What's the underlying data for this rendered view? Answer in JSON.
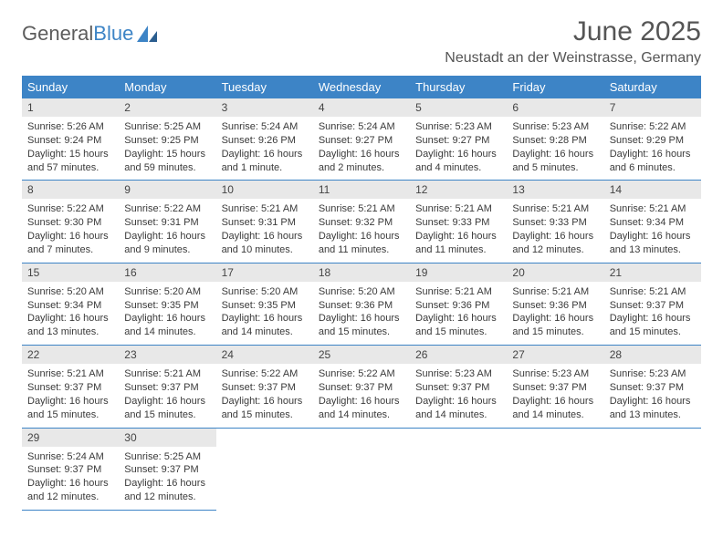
{
  "logo": {
    "part1": "General",
    "part2": "Blue"
  },
  "title": "June 2025",
  "location": "Neustadt an der Weinstrasse, Germany",
  "colors": {
    "header_bg": "#3d84c6",
    "header_fg": "#ffffff",
    "daynum_bg": "#e8e8e8",
    "row_divider": "#3d84c6",
    "text": "#3a3a3a",
    "title": "#555"
  },
  "weekdays": [
    "Sunday",
    "Monday",
    "Tuesday",
    "Wednesday",
    "Thursday",
    "Friday",
    "Saturday"
  ],
  "font": {
    "body_size": 11,
    "header_size": 13,
    "title_size": 30,
    "location_size": 16
  },
  "days": [
    {
      "n": "1",
      "sr": "Sunrise: 5:26 AM",
      "ss": "Sunset: 9:24 PM",
      "dl1": "Daylight: 15 hours",
      "dl2": "and 57 minutes."
    },
    {
      "n": "2",
      "sr": "Sunrise: 5:25 AM",
      "ss": "Sunset: 9:25 PM",
      "dl1": "Daylight: 15 hours",
      "dl2": "and 59 minutes."
    },
    {
      "n": "3",
      "sr": "Sunrise: 5:24 AM",
      "ss": "Sunset: 9:26 PM",
      "dl1": "Daylight: 16 hours",
      "dl2": "and 1 minute."
    },
    {
      "n": "4",
      "sr": "Sunrise: 5:24 AM",
      "ss": "Sunset: 9:27 PM",
      "dl1": "Daylight: 16 hours",
      "dl2": "and 2 minutes."
    },
    {
      "n": "5",
      "sr": "Sunrise: 5:23 AM",
      "ss": "Sunset: 9:27 PM",
      "dl1": "Daylight: 16 hours",
      "dl2": "and 4 minutes."
    },
    {
      "n": "6",
      "sr": "Sunrise: 5:23 AM",
      "ss": "Sunset: 9:28 PM",
      "dl1": "Daylight: 16 hours",
      "dl2": "and 5 minutes."
    },
    {
      "n": "7",
      "sr": "Sunrise: 5:22 AM",
      "ss": "Sunset: 9:29 PM",
      "dl1": "Daylight: 16 hours",
      "dl2": "and 6 minutes."
    },
    {
      "n": "8",
      "sr": "Sunrise: 5:22 AM",
      "ss": "Sunset: 9:30 PM",
      "dl1": "Daylight: 16 hours",
      "dl2": "and 7 minutes."
    },
    {
      "n": "9",
      "sr": "Sunrise: 5:22 AM",
      "ss": "Sunset: 9:31 PM",
      "dl1": "Daylight: 16 hours",
      "dl2": "and 9 minutes."
    },
    {
      "n": "10",
      "sr": "Sunrise: 5:21 AM",
      "ss": "Sunset: 9:31 PM",
      "dl1": "Daylight: 16 hours",
      "dl2": "and 10 minutes."
    },
    {
      "n": "11",
      "sr": "Sunrise: 5:21 AM",
      "ss": "Sunset: 9:32 PM",
      "dl1": "Daylight: 16 hours",
      "dl2": "and 11 minutes."
    },
    {
      "n": "12",
      "sr": "Sunrise: 5:21 AM",
      "ss": "Sunset: 9:33 PM",
      "dl1": "Daylight: 16 hours",
      "dl2": "and 11 minutes."
    },
    {
      "n": "13",
      "sr": "Sunrise: 5:21 AM",
      "ss": "Sunset: 9:33 PM",
      "dl1": "Daylight: 16 hours",
      "dl2": "and 12 minutes."
    },
    {
      "n": "14",
      "sr": "Sunrise: 5:21 AM",
      "ss": "Sunset: 9:34 PM",
      "dl1": "Daylight: 16 hours",
      "dl2": "and 13 minutes."
    },
    {
      "n": "15",
      "sr": "Sunrise: 5:20 AM",
      "ss": "Sunset: 9:34 PM",
      "dl1": "Daylight: 16 hours",
      "dl2": "and 13 minutes."
    },
    {
      "n": "16",
      "sr": "Sunrise: 5:20 AM",
      "ss": "Sunset: 9:35 PM",
      "dl1": "Daylight: 16 hours",
      "dl2": "and 14 minutes."
    },
    {
      "n": "17",
      "sr": "Sunrise: 5:20 AM",
      "ss": "Sunset: 9:35 PM",
      "dl1": "Daylight: 16 hours",
      "dl2": "and 14 minutes."
    },
    {
      "n": "18",
      "sr": "Sunrise: 5:20 AM",
      "ss": "Sunset: 9:36 PM",
      "dl1": "Daylight: 16 hours",
      "dl2": "and 15 minutes."
    },
    {
      "n": "19",
      "sr": "Sunrise: 5:21 AM",
      "ss": "Sunset: 9:36 PM",
      "dl1": "Daylight: 16 hours",
      "dl2": "and 15 minutes."
    },
    {
      "n": "20",
      "sr": "Sunrise: 5:21 AM",
      "ss": "Sunset: 9:36 PM",
      "dl1": "Daylight: 16 hours",
      "dl2": "and 15 minutes."
    },
    {
      "n": "21",
      "sr": "Sunrise: 5:21 AM",
      "ss": "Sunset: 9:37 PM",
      "dl1": "Daylight: 16 hours",
      "dl2": "and 15 minutes."
    },
    {
      "n": "22",
      "sr": "Sunrise: 5:21 AM",
      "ss": "Sunset: 9:37 PM",
      "dl1": "Daylight: 16 hours",
      "dl2": "and 15 minutes."
    },
    {
      "n": "23",
      "sr": "Sunrise: 5:21 AM",
      "ss": "Sunset: 9:37 PM",
      "dl1": "Daylight: 16 hours",
      "dl2": "and 15 minutes."
    },
    {
      "n": "24",
      "sr": "Sunrise: 5:22 AM",
      "ss": "Sunset: 9:37 PM",
      "dl1": "Daylight: 16 hours",
      "dl2": "and 15 minutes."
    },
    {
      "n": "25",
      "sr": "Sunrise: 5:22 AM",
      "ss": "Sunset: 9:37 PM",
      "dl1": "Daylight: 16 hours",
      "dl2": "and 14 minutes."
    },
    {
      "n": "26",
      "sr": "Sunrise: 5:23 AM",
      "ss": "Sunset: 9:37 PM",
      "dl1": "Daylight: 16 hours",
      "dl2": "and 14 minutes."
    },
    {
      "n": "27",
      "sr": "Sunrise: 5:23 AM",
      "ss": "Sunset: 9:37 PM",
      "dl1": "Daylight: 16 hours",
      "dl2": "and 14 minutes."
    },
    {
      "n": "28",
      "sr": "Sunrise: 5:23 AM",
      "ss": "Sunset: 9:37 PM",
      "dl1": "Daylight: 16 hours",
      "dl2": "and 13 minutes."
    },
    {
      "n": "29",
      "sr": "Sunrise: 5:24 AM",
      "ss": "Sunset: 9:37 PM",
      "dl1": "Daylight: 16 hours",
      "dl2": "and 12 minutes."
    },
    {
      "n": "30",
      "sr": "Sunrise: 5:25 AM",
      "ss": "Sunset: 9:37 PM",
      "dl1": "Daylight: 16 hours",
      "dl2": "and 12 minutes."
    }
  ]
}
